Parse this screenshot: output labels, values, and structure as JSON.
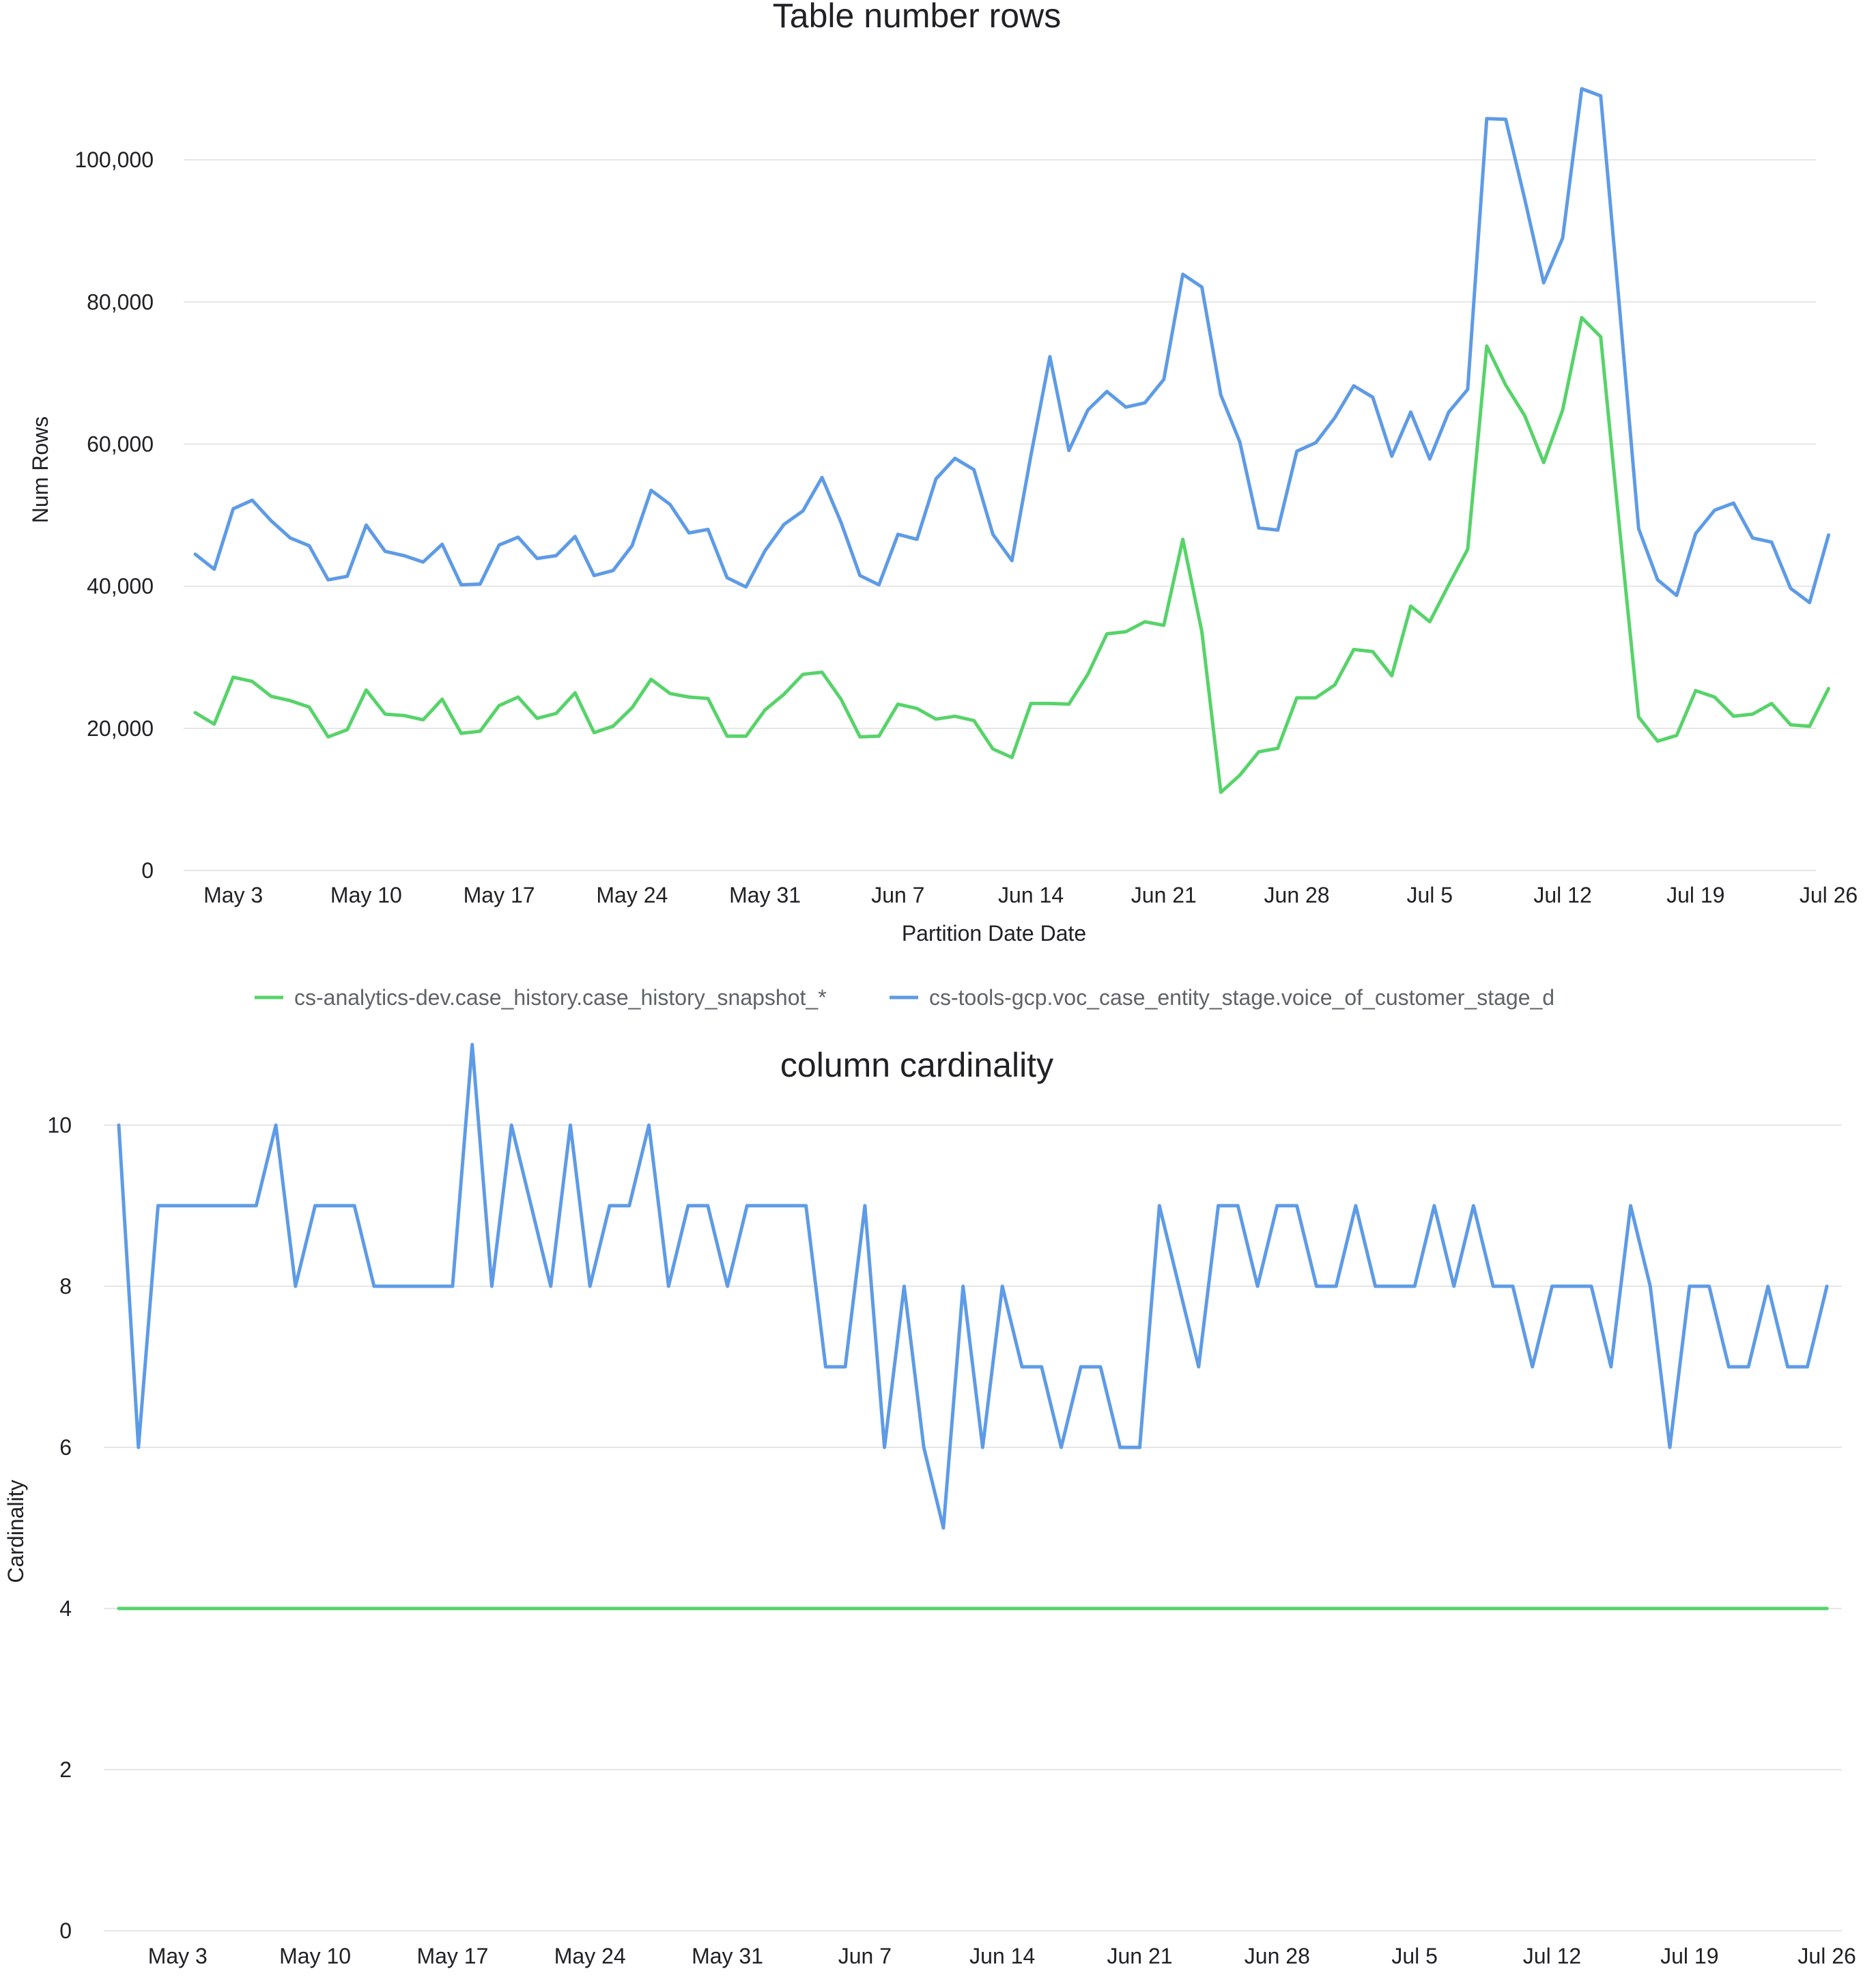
{
  "chart_data": [
    {
      "type": "line",
      "title": "Table number rows",
      "xlabel": "Partition Date Date",
      "ylabel": "Num Rows",
      "ylim": [
        0,
        110000
      ],
      "grid": true,
      "legend": "bottom",
      "x_start": "2024-05-01",
      "x_ticks": [
        "May 3",
        "May 10",
        "May 17",
        "May 24",
        "May 31",
        "Jun 7",
        "Jun 14",
        "Jun 21",
        "Jun 28",
        "Jul 5",
        "Jul 12",
        "Jul 19",
        "Jul 26"
      ],
      "y_ticks": [
        0,
        20000,
        40000,
        60000,
        80000,
        100000
      ],
      "y_tick_labels": [
        "0",
        "20,000",
        "40,000",
        "60,000",
        "80,000",
        "100,000"
      ],
      "series": [
        {
          "name": "cs-analytics-dev.case_history.case_history_snapshot_*",
          "color": "#57d36a",
          "values": [
            22200,
            20600,
            27200,
            26600,
            24500,
            23900,
            23000,
            18800,
            19800,
            25400,
            22000,
            21800,
            21200,
            24100,
            19300,
            19600,
            23200,
            24400,
            21400,
            22100,
            25000,
            19400,
            20300,
            22900,
            26900,
            24900,
            24400,
            24200,
            18900,
            18900,
            22600,
            24800,
            27600,
            27900,
            24100,
            18800,
            18900,
            23400,
            22800,
            21300,
            21700,
            21100,
            17100,
            15900,
            23500,
            23500,
            23400,
            27600,
            33300,
            33600,
            35000,
            34500,
            46600,
            33600,
            11000,
            13400,
            16700,
            17200,
            24300,
            24300,
            26100,
            31100,
            30800,
            27400,
            37200,
            35000,
            40200,
            45200,
            73800,
            68300,
            64000,
            57400,
            64800,
            77800,
            75100,
            48000,
            21600,
            18200,
            19000,
            25300,
            24400,
            21700,
            22000,
            23500,
            20500,
            20300,
            25600
          ]
        },
        {
          "name": "cs-tools-gcp.voc_case_entity_stage.voice_of_customer_stage_d",
          "color": "#5e9be6",
          "values": [
            44500,
            42400,
            50900,
            52100,
            49200,
            46800,
            45700,
            40900,
            41400,
            48600,
            44900,
            44300,
            43400,
            45900,
            40200,
            40300,
            45800,
            46900,
            43900,
            44300,
            47000,
            41500,
            42200,
            45700,
            53500,
            51500,
            47500,
            48000,
            41200,
            39900,
            45000,
            48700,
            50600,
            55300,
            49000,
            41500,
            40200,
            47300,
            46600,
            55100,
            58000,
            56400,
            47300,
            43600,
            58400,
            72300,
            59100,
            64800,
            67400,
            65200,
            65800,
            69100,
            83900,
            82100,
            66900,
            60300,
            48200,
            47900,
            59000,
            60200,
            63700,
            68200,
            66600,
            58300,
            64500,
            57900,
            64500,
            67700,
            105800,
            105700,
            94500,
            82700,
            89000,
            110000,
            109000,
            79000,
            48100,
            40900,
            38700,
            47400,
            50700,
            51700,
            46800,
            46200,
            39700,
            37700,
            47200
          ]
        }
      ]
    },
    {
      "type": "line",
      "title": "column cardinality",
      "xlabel": "",
      "ylabel": "Cardinality",
      "ylim": [
        0,
        11
      ],
      "grid": true,
      "x_start": "2024-04-30",
      "x_ticks": [
        "May 3",
        "May 10",
        "May 17",
        "May 24",
        "May 31",
        "Jun 7",
        "Jun 14",
        "Jun 21",
        "Jun 28",
        "Jul 5",
        "Jul 12",
        "Jul 19",
        "Jul 26"
      ],
      "y_ticks": [
        0,
        2,
        4,
        6,
        8,
        10
      ],
      "y_tick_labels": [
        "0",
        "2",
        "4",
        "6",
        "8",
        "10"
      ],
      "series": [
        {
          "color": "#5e9be6",
          "values": [
            10,
            6,
            9,
            9,
            9,
            9,
            9,
            9,
            10,
            8,
            9,
            9,
            9,
            8,
            8,
            8,
            8,
            8,
            11,
            8,
            10,
            9,
            8,
            10,
            8,
            9,
            9,
            10,
            8,
            9,
            9,
            8,
            9,
            9,
            9,
            9,
            7,
            7,
            9,
            6,
            8,
            6,
            5,
            8,
            6,
            8,
            7,
            7,
            6,
            7,
            7,
            6,
            6,
            9,
            8,
            7,
            9,
            9,
            8,
            9,
            9,
            8,
            8,
            9,
            8,
            8,
            8,
            9,
            8,
            9,
            8,
            8,
            7,
            8,
            8,
            8,
            7,
            9,
            8,
            6,
            8,
            8,
            7,
            7,
            8,
            7,
            7,
            8
          ]
        },
        {
          "color": "#57d36a",
          "values": [
            4,
            4,
            4,
            4,
            4,
            4,
            4,
            4,
            4,
            4,
            4,
            4,
            4,
            4,
            4,
            4,
            4,
            4,
            4,
            4,
            4,
            4,
            4,
            4,
            4,
            4,
            4,
            4,
            4,
            4,
            4,
            4,
            4,
            4,
            4,
            4,
            4,
            4,
            4,
            4,
            4,
            4,
            4,
            4,
            4,
            4,
            4,
            4,
            4,
            4,
            4,
            4,
            4,
            4,
            4,
            4,
            4,
            4,
            4,
            4,
            4,
            4,
            4,
            4,
            4,
            4,
            4,
            4,
            4,
            4,
            4,
            4,
            4,
            4,
            4,
            4,
            4,
            4,
            4,
            4,
            4,
            4,
            4,
            4,
            4,
            4,
            4,
            4
          ]
        }
      ]
    }
  ]
}
